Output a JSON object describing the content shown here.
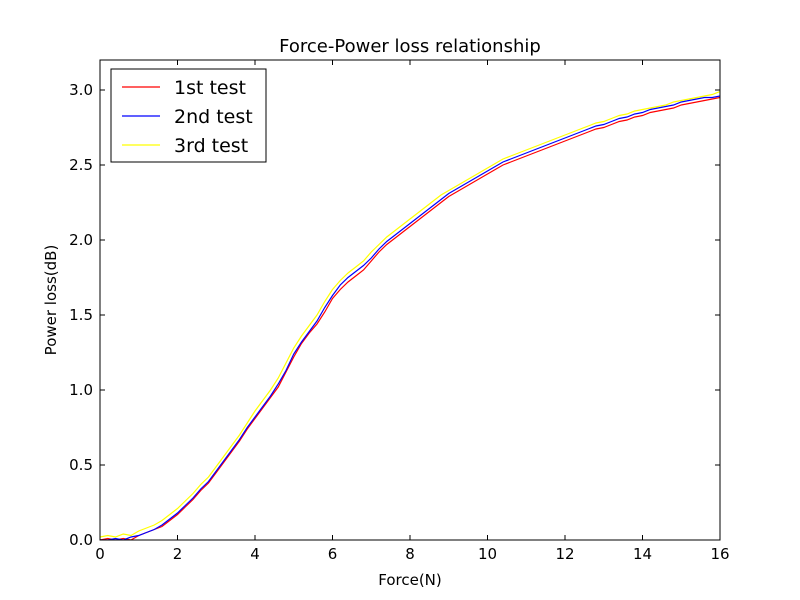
{
  "chart_data": {
    "type": "line",
    "title": "Force-Power loss relationship",
    "xlabel": "Force(N)",
    "ylabel": "Power loss(dB)",
    "xlim": [
      0,
      16
    ],
    "ylim": [
      0,
      3.2
    ],
    "xticks": [
      0,
      2,
      4,
      6,
      8,
      10,
      12,
      14,
      16
    ],
    "yticks": [
      0.0,
      0.5,
      1.0,
      1.5,
      2.0,
      2.5,
      3.0
    ],
    "ytick_labels": [
      "0.0",
      "0.5",
      "1.0",
      "1.5",
      "2.0",
      "2.5",
      "3.0"
    ],
    "grid": false,
    "legend_position": "top-left",
    "series": [
      {
        "name": "1st test",
        "color": "#ff0000",
        "x": [
          0,
          0.2,
          0.4,
          0.6,
          0.8,
          1.0,
          1.2,
          1.4,
          1.6,
          1.8,
          2.0,
          2.2,
          2.4,
          2.6,
          2.8,
          3.0,
          3.2,
          3.4,
          3.6,
          3.8,
          4.0,
          4.2,
          4.4,
          4.6,
          4.8,
          5.0,
          5.2,
          5.4,
          5.6,
          5.8,
          6.0,
          6.2,
          6.4,
          6.6,
          6.8,
          7.0,
          7.2,
          7.4,
          7.6,
          7.8,
          8.0,
          8.2,
          8.4,
          8.6,
          8.8,
          9.0,
          9.2,
          9.4,
          9.6,
          9.8,
          10.0,
          10.2,
          10.4,
          10.6,
          10.8,
          11.0,
          11.2,
          11.4,
          11.6,
          11.8,
          12.0,
          12.2,
          12.4,
          12.6,
          12.8,
          13.0,
          13.2,
          13.4,
          13.6,
          13.8,
          14.0,
          14.2,
          14.4,
          14.6,
          14.8,
          15.0,
          15.2,
          15.4,
          15.6,
          15.8,
          16.0
        ],
        "y": [
          0.0,
          0.01,
          0.0,
          0.01,
          0.0,
          0.03,
          0.05,
          0.07,
          0.09,
          0.13,
          0.17,
          0.22,
          0.27,
          0.33,
          0.38,
          0.45,
          0.52,
          0.59,
          0.66,
          0.74,
          0.81,
          0.88,
          0.95,
          1.02,
          1.12,
          1.22,
          1.31,
          1.38,
          1.44,
          1.52,
          1.61,
          1.67,
          1.72,
          1.76,
          1.8,
          1.86,
          1.92,
          1.97,
          2.01,
          2.05,
          2.09,
          2.13,
          2.17,
          2.21,
          2.25,
          2.29,
          2.32,
          2.35,
          2.38,
          2.41,
          2.44,
          2.47,
          2.5,
          2.52,
          2.54,
          2.56,
          2.58,
          2.6,
          2.62,
          2.64,
          2.66,
          2.68,
          2.7,
          2.72,
          2.74,
          2.75,
          2.77,
          2.79,
          2.8,
          2.82,
          2.83,
          2.85,
          2.86,
          2.87,
          2.88,
          2.9,
          2.91,
          2.92,
          2.93,
          2.94,
          2.95
        ]
      },
      {
        "name": "2nd test",
        "color": "#0000ff",
        "x": [
          0,
          0.2,
          0.4,
          0.6,
          0.8,
          1.0,
          1.2,
          1.4,
          1.6,
          1.8,
          2.0,
          2.2,
          2.4,
          2.6,
          2.8,
          3.0,
          3.2,
          3.4,
          3.6,
          3.8,
          4.0,
          4.2,
          4.4,
          4.6,
          4.8,
          5.0,
          5.2,
          5.4,
          5.6,
          5.8,
          6.0,
          6.2,
          6.4,
          6.6,
          6.8,
          7.0,
          7.2,
          7.4,
          7.6,
          7.8,
          8.0,
          8.2,
          8.4,
          8.6,
          8.8,
          9.0,
          9.2,
          9.4,
          9.6,
          9.8,
          10.0,
          10.2,
          10.4,
          10.6,
          10.8,
          11.0,
          11.2,
          11.4,
          11.6,
          11.8,
          12.0,
          12.2,
          12.4,
          12.6,
          12.8,
          13.0,
          13.2,
          13.4,
          13.6,
          13.8,
          14.0,
          14.2,
          14.4,
          14.6,
          14.8,
          15.0,
          15.2,
          15.4,
          15.6,
          15.8,
          16.0
        ],
        "y": [
          0.0,
          0.0,
          0.01,
          0.0,
          0.02,
          0.03,
          0.05,
          0.07,
          0.1,
          0.14,
          0.18,
          0.23,
          0.28,
          0.34,
          0.39,
          0.46,
          0.53,
          0.6,
          0.67,
          0.75,
          0.82,
          0.89,
          0.96,
          1.04,
          1.13,
          1.24,
          1.32,
          1.39,
          1.46,
          1.55,
          1.63,
          1.7,
          1.75,
          1.79,
          1.83,
          1.88,
          1.94,
          1.99,
          2.03,
          2.07,
          2.11,
          2.15,
          2.19,
          2.23,
          2.27,
          2.31,
          2.34,
          2.37,
          2.4,
          2.43,
          2.46,
          2.49,
          2.52,
          2.54,
          2.56,
          2.58,
          2.6,
          2.62,
          2.64,
          2.66,
          2.68,
          2.7,
          2.72,
          2.74,
          2.76,
          2.77,
          2.79,
          2.81,
          2.82,
          2.84,
          2.85,
          2.87,
          2.88,
          2.89,
          2.9,
          2.92,
          2.93,
          2.94,
          2.95,
          2.95,
          2.96
        ]
      },
      {
        "name": "3rd test",
        "color": "#ffff00",
        "x": [
          0,
          0.2,
          0.4,
          0.6,
          0.8,
          1.0,
          1.2,
          1.4,
          1.6,
          1.8,
          2.0,
          2.2,
          2.4,
          2.6,
          2.8,
          3.0,
          3.2,
          3.4,
          3.6,
          3.8,
          4.0,
          4.2,
          4.4,
          4.6,
          4.8,
          5.0,
          5.2,
          5.4,
          5.6,
          5.8,
          6.0,
          6.2,
          6.4,
          6.6,
          6.8,
          7.0,
          7.2,
          7.4,
          7.6,
          7.8,
          8.0,
          8.2,
          8.4,
          8.6,
          8.8,
          9.0,
          9.2,
          9.4,
          9.6,
          9.8,
          10.0,
          10.2,
          10.4,
          10.6,
          10.8,
          11.0,
          11.2,
          11.4,
          11.6,
          11.8,
          12.0,
          12.2,
          12.4,
          12.6,
          12.8,
          13.0,
          13.2,
          13.4,
          13.6,
          13.8,
          14.0,
          14.2,
          14.4,
          14.6,
          14.8,
          15.0,
          15.2,
          15.4,
          15.6,
          15.8,
          16.0
        ],
        "y": [
          0.02,
          0.03,
          0.02,
          0.04,
          0.03,
          0.06,
          0.08,
          0.1,
          0.13,
          0.17,
          0.21,
          0.26,
          0.31,
          0.37,
          0.42,
          0.49,
          0.56,
          0.63,
          0.7,
          0.78,
          0.86,
          0.93,
          1.0,
          1.08,
          1.18,
          1.28,
          1.36,
          1.43,
          1.5,
          1.59,
          1.67,
          1.73,
          1.78,
          1.82,
          1.86,
          1.92,
          1.97,
          2.02,
          2.06,
          2.1,
          2.14,
          2.18,
          2.22,
          2.26,
          2.3,
          2.33,
          2.36,
          2.39,
          2.42,
          2.45,
          2.48,
          2.51,
          2.54,
          2.56,
          2.58,
          2.6,
          2.62,
          2.64,
          2.66,
          2.68,
          2.7,
          2.72,
          2.74,
          2.76,
          2.78,
          2.79,
          2.81,
          2.83,
          2.84,
          2.86,
          2.87,
          2.88,
          2.89,
          2.9,
          2.92,
          2.93,
          2.94,
          2.95,
          2.96,
          2.97,
          2.99
        ]
      }
    ]
  }
}
